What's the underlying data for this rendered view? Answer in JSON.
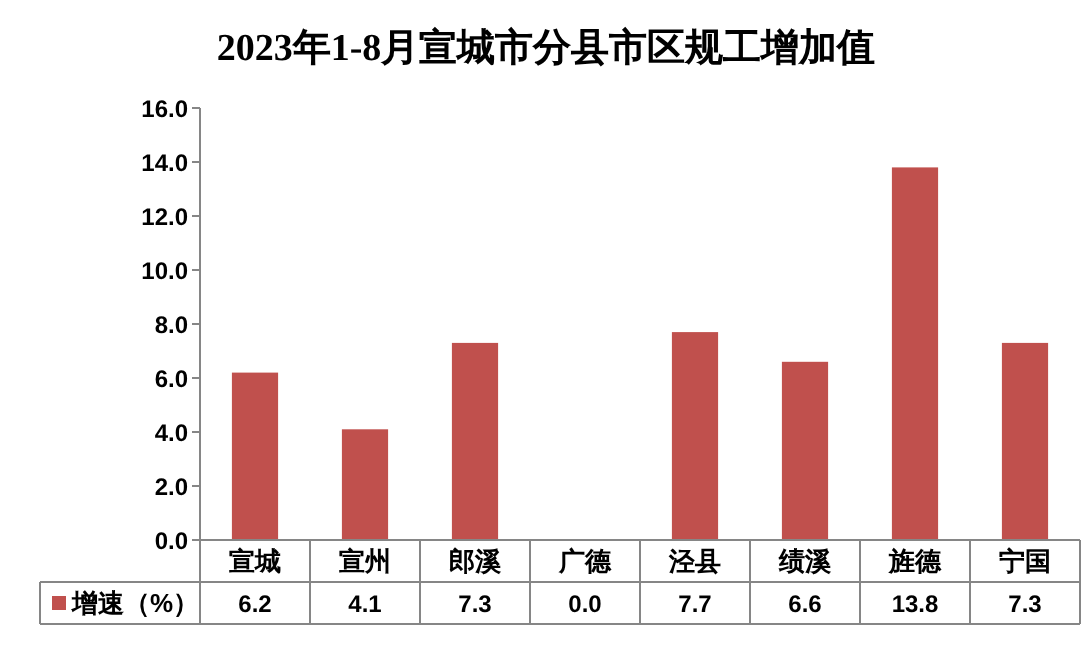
{
  "chart_data": {
    "type": "bar",
    "title": "2023年1-8月宣城市分县市区规工增加值",
    "categories": [
      "宣城",
      "宣州",
      "郎溪",
      "广德",
      "泾县",
      "绩溪",
      "旌德",
      "宁国"
    ],
    "series": [
      {
        "name": "增速（%）",
        "color": "#c0504d",
        "values": [
          6.2,
          4.1,
          7.3,
          0.0,
          7.7,
          6.6,
          13.8,
          7.3
        ],
        "value_labels": [
          "6.2",
          "4.1",
          "7.3",
          "0.0",
          "7.7",
          "6.6",
          "13.8",
          "7.3"
        ]
      }
    ],
    "ylim": [
      0,
      16
    ],
    "yticks": [
      {
        "value": 0,
        "label": "0.0"
      },
      {
        "value": 2,
        "label": "2.0"
      },
      {
        "value": 4,
        "label": "4.0"
      },
      {
        "value": 6,
        "label": "6.0"
      },
      {
        "value": 8,
        "label": "8.0"
      },
      {
        "value": 10,
        "label": "10.0"
      },
      {
        "value": 12,
        "label": "12.0"
      },
      {
        "value": 14,
        "label": "14.0"
      },
      {
        "value": 16,
        "label": "16.0"
      }
    ],
    "grid": false,
    "legend": "bottom"
  }
}
